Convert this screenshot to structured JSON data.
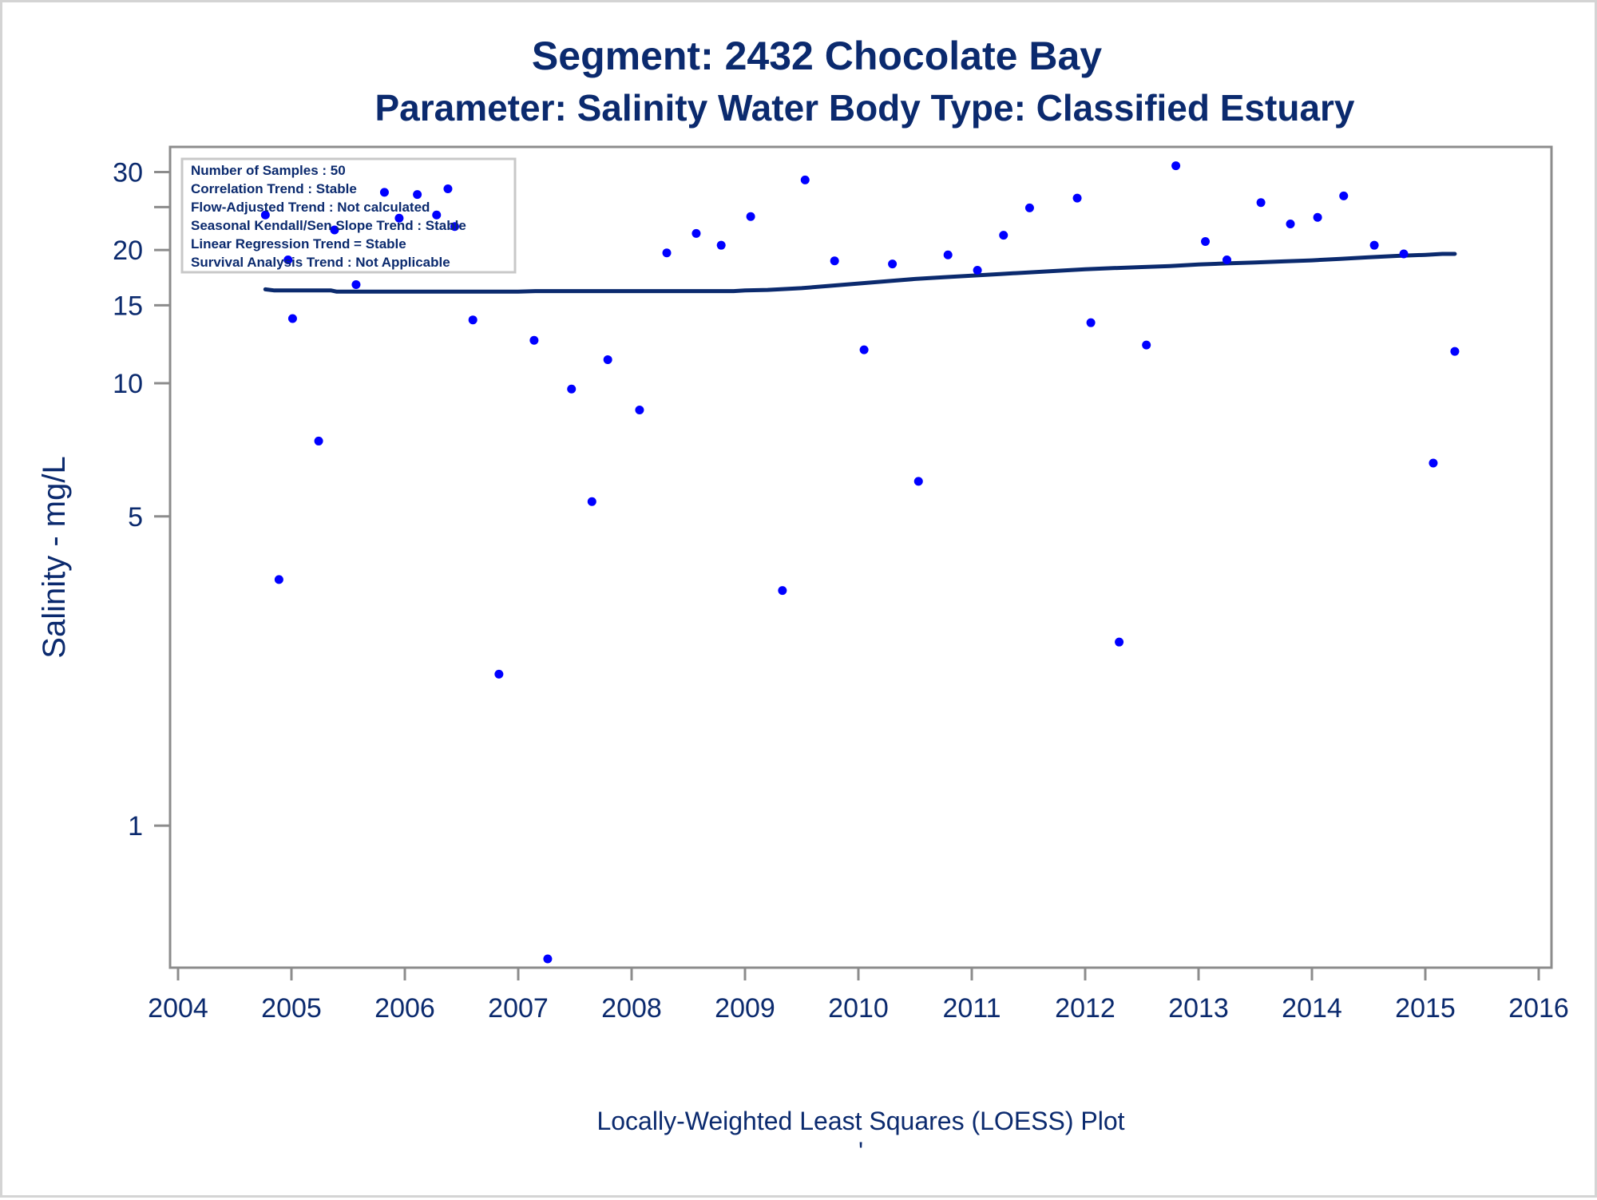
{
  "colors": {
    "text": "#0b2a6e",
    "marker": "#0000ff",
    "loess_line": "#0b2a6e",
    "axis": "#8c8c8c",
    "legend_border": "#c8c8c8"
  },
  "chart_data": {
    "type": "scatter",
    "title": "Segment: 2432  Chocolate Bay",
    "subtitle": "Parameter: Salinity   Water Body Type: Classified Estuary",
    "ylabel": "Salinity - mg/L",
    "xlabel": "",
    "footnote": "Locally-Weighted Least Squares (LOESS) Plot",
    "footnote_mark": "'",
    "x_scale": "linear (year)",
    "y_scale": "log",
    "xlim": [
      2004,
      2016
    ],
    "ylim": [
      0.5,
      32
    ],
    "x_ticks": [
      {
        "value": 2004,
        "label": "2004"
      },
      {
        "value": 2005,
        "label": "2005"
      },
      {
        "value": 2006,
        "label": "2006"
      },
      {
        "value": 2007,
        "label": "2007"
      },
      {
        "value": 2008,
        "label": "2008"
      },
      {
        "value": 2009,
        "label": "2009"
      },
      {
        "value": 2010,
        "label": "2010"
      },
      {
        "value": 2011,
        "label": "2011"
      },
      {
        "value": 2012,
        "label": "2012"
      },
      {
        "value": 2013,
        "label": "2013"
      },
      {
        "value": 2014,
        "label": "2014"
      },
      {
        "value": 2015,
        "label": "2015"
      },
      {
        "value": 2016,
        "label": "2016"
      }
    ],
    "y_ticks": [
      {
        "value": 30,
        "label": "30"
      },
      {
        "value": 25,
        "label": ""
      },
      {
        "value": 20,
        "label": "20"
      },
      {
        "value": 15,
        "label": "15"
      },
      {
        "value": 10,
        "label": "10"
      },
      {
        "value": 5,
        "label": "5"
      },
      {
        "value": 1,
        "label": "1"
      }
    ],
    "grid": false,
    "legend_position": "top-left",
    "stats_box": [
      "Number of Samples : 50",
      "Correlation Trend : Stable",
      "Flow-Adjusted Trend : Not calculated",
      "Seasonal Kendall/Sen Slope Trend : Stable",
      "Linear Regression Trend = Stable",
      "Survival Analysis Trend : Not Applicable"
    ],
    "series": [
      {
        "kind": "points",
        "points": [
          {
            "x": 2004.77,
            "y": 24.0
          },
          {
            "x": 2004.89,
            "y": 3.6
          },
          {
            "x": 2004.97,
            "y": 19.0
          },
          {
            "x": 2005.01,
            "y": 14.0
          },
          {
            "x": 2005.24,
            "y": 7.4
          },
          {
            "x": 2005.38,
            "y": 22.2
          },
          {
            "x": 2005.57,
            "y": 16.7
          },
          {
            "x": 2005.82,
            "y": 27.0
          },
          {
            "x": 2005.95,
            "y": 23.6
          },
          {
            "x": 2006.11,
            "y": 26.7
          },
          {
            "x": 2006.28,
            "y": 24.0
          },
          {
            "x": 2006.38,
            "y": 27.5
          },
          {
            "x": 2006.44,
            "y": 22.6
          },
          {
            "x": 2006.6,
            "y": 13.9
          },
          {
            "x": 2006.83,
            "y": 2.2
          },
          {
            "x": 2007.14,
            "y": 12.5
          },
          {
            "x": 2007.26,
            "y": 0.5
          },
          {
            "x": 2007.47,
            "y": 9.7
          },
          {
            "x": 2007.65,
            "y": 5.4
          },
          {
            "x": 2007.79,
            "y": 11.3
          },
          {
            "x": 2008.07,
            "y": 8.7
          },
          {
            "x": 2008.31,
            "y": 19.7
          },
          {
            "x": 2008.57,
            "y": 21.8
          },
          {
            "x": 2008.79,
            "y": 20.5
          },
          {
            "x": 2009.05,
            "y": 23.8
          },
          {
            "x": 2009.33,
            "y": 3.4
          },
          {
            "x": 2009.53,
            "y": 28.8
          },
          {
            "x": 2009.79,
            "y": 18.9
          },
          {
            "x": 2010.05,
            "y": 11.9
          },
          {
            "x": 2010.3,
            "y": 18.6
          },
          {
            "x": 2010.53,
            "y": 6.0
          },
          {
            "x": 2010.79,
            "y": 19.5
          },
          {
            "x": 2011.05,
            "y": 18.0
          },
          {
            "x": 2011.28,
            "y": 21.6
          },
          {
            "x": 2011.51,
            "y": 24.9
          },
          {
            "x": 2011.93,
            "y": 26.2
          },
          {
            "x": 2012.05,
            "y": 13.7
          },
          {
            "x": 2012.3,
            "y": 2.6
          },
          {
            "x": 2012.54,
            "y": 12.2
          },
          {
            "x": 2012.8,
            "y": 31.0
          },
          {
            "x": 2013.06,
            "y": 20.9
          },
          {
            "x": 2013.25,
            "y": 19.0
          },
          {
            "x": 2013.55,
            "y": 25.6
          },
          {
            "x": 2013.81,
            "y": 22.9
          },
          {
            "x": 2014.05,
            "y": 23.7
          },
          {
            "x": 2014.28,
            "y": 26.5
          },
          {
            "x": 2014.55,
            "y": 20.5
          },
          {
            "x": 2014.81,
            "y": 19.6
          },
          {
            "x": 2015.07,
            "y": 6.6
          },
          {
            "x": 2015.26,
            "y": 11.8
          }
        ]
      },
      {
        "kind": "loess",
        "points": [
          {
            "x": 2004.77,
            "y": 16.3
          },
          {
            "x": 2004.85,
            "y": 16.2
          },
          {
            "x": 2005.0,
            "y": 16.2
          },
          {
            "x": 2005.35,
            "y": 16.2
          },
          {
            "x": 2005.4,
            "y": 16.1
          },
          {
            "x": 2006.0,
            "y": 16.1
          },
          {
            "x": 2007.0,
            "y": 16.1
          },
          {
            "x": 2007.15,
            "y": 16.15
          },
          {
            "x": 2008.0,
            "y": 16.15
          },
          {
            "x": 2008.9,
            "y": 16.15
          },
          {
            "x": 2009.0,
            "y": 16.2
          },
          {
            "x": 2009.2,
            "y": 16.25
          },
          {
            "x": 2009.5,
            "y": 16.4
          },
          {
            "x": 2009.75,
            "y": 16.6
          },
          {
            "x": 2010.0,
            "y": 16.8
          },
          {
            "x": 2010.25,
            "y": 17.0
          },
          {
            "x": 2010.5,
            "y": 17.2
          },
          {
            "x": 2010.75,
            "y": 17.35
          },
          {
            "x": 2011.0,
            "y": 17.5
          },
          {
            "x": 2011.25,
            "y": 17.65
          },
          {
            "x": 2011.5,
            "y": 17.8
          },
          {
            "x": 2011.75,
            "y": 17.95
          },
          {
            "x": 2012.0,
            "y": 18.1
          },
          {
            "x": 2012.25,
            "y": 18.2
          },
          {
            "x": 2012.5,
            "y": 18.3
          },
          {
            "x": 2012.75,
            "y": 18.4
          },
          {
            "x": 2013.0,
            "y": 18.55
          },
          {
            "x": 2013.25,
            "y": 18.65
          },
          {
            "x": 2013.5,
            "y": 18.75
          },
          {
            "x": 2013.75,
            "y": 18.85
          },
          {
            "x": 2014.0,
            "y": 18.95
          },
          {
            "x": 2014.25,
            "y": 19.1
          },
          {
            "x": 2014.5,
            "y": 19.25
          },
          {
            "x": 2014.75,
            "y": 19.4
          },
          {
            "x": 2015.0,
            "y": 19.5
          },
          {
            "x": 2015.15,
            "y": 19.6
          },
          {
            "x": 2015.26,
            "y": 19.6
          }
        ]
      }
    ]
  }
}
